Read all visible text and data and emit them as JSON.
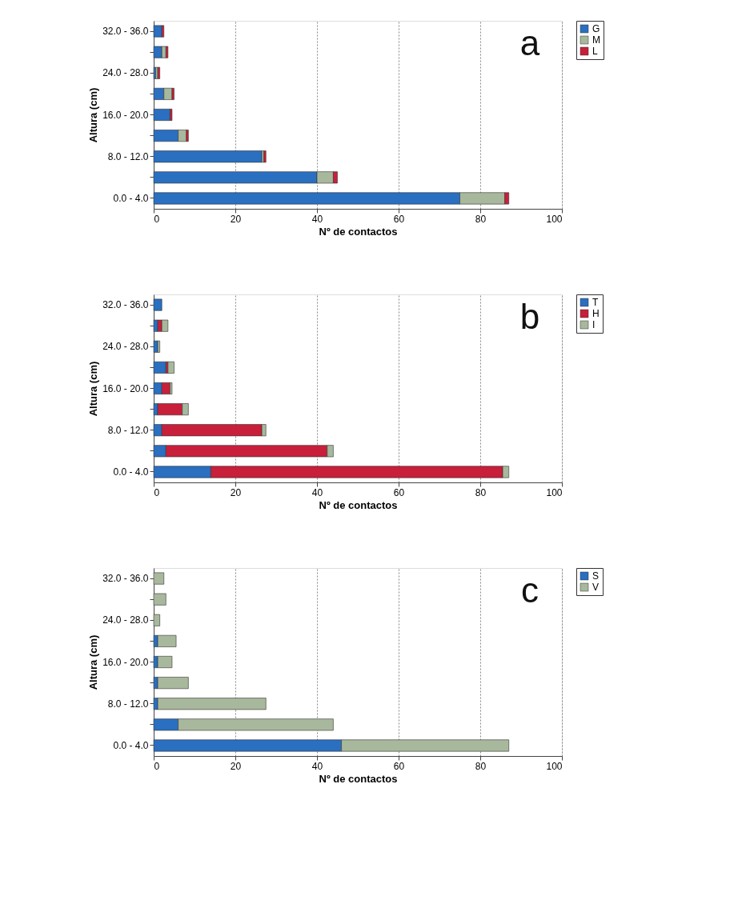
{
  "chart_data": [
    {
      "type": "bar",
      "orientation": "horizontal",
      "stacked": true,
      "annotations": [
        "a"
      ],
      "xlabel": "Nº de contactos",
      "ylabel": "Altura (cm)",
      "categories": [
        "32.0 - 36.0",
        null,
        "24.0 - 28.0",
        null,
        "16.0 - 20.0",
        null,
        "8.0 - 12.0",
        null,
        "0.0 - 4.0"
      ],
      "series": [
        {
          "name": "G",
          "color": "#2a6fc0",
          "values": [
            2,
            2,
            0.5,
            2.5,
            4,
            6,
            26.5,
            40,
            75
          ]
        },
        {
          "name": "M",
          "color": "#a8b89c",
          "values": [
            0,
            1,
            0.5,
            2,
            0,
            2,
            0.5,
            4,
            11
          ]
        },
        {
          "name": "L",
          "color": "#c81f3a",
          "values": [
            0.5,
            0.5,
            0.5,
            0.5,
            0.5,
            0.5,
            0.5,
            1,
            1
          ]
        }
      ],
      "xlim": [
        0,
        100
      ],
      "xticks": [
        0,
        20,
        40,
        60,
        80,
        100
      ],
      "grid": "x",
      "legend": "top right"
    },
    {
      "type": "bar",
      "orientation": "horizontal",
      "stacked": true,
      "annotations": [
        "b"
      ],
      "xlabel": "Nº de contactos",
      "ylabel": "Altura (cm)",
      "categories": [
        "32.0 - 36.0",
        null,
        "24.0 - 28.0",
        null,
        "16.0 - 20.0",
        null,
        "8.0 - 12.0",
        null,
        "0.0 - 4.0"
      ],
      "series": [
        {
          "name": "T",
          "color": "#2a6fc0",
          "values": [
            2,
            1,
            1,
            3,
            2,
            1,
            2,
            3,
            14
          ]
        },
        {
          "name": "H",
          "color": "#c81f3a",
          "values": [
            0,
            1,
            0,
            0.5,
            2,
            6,
            24.5,
            39.5,
            71.5
          ]
        },
        {
          "name": "I",
          "color": "#a8b89c",
          "values": [
            0,
            1.5,
            0.5,
            1.5,
            0.5,
            1.5,
            1,
            1.5,
            1.5
          ]
        }
      ],
      "xlim": [
        0,
        100
      ],
      "xticks": [
        0,
        20,
        40,
        60,
        80,
        100
      ],
      "grid": "x",
      "legend": "top right"
    },
    {
      "type": "bar",
      "orientation": "horizontal",
      "stacked": true,
      "annotations": [
        "c"
      ],
      "xlabel": "Nº de contactos",
      "ylabel": "Altura (cm)",
      "categories": [
        "32.0 - 36.0",
        null,
        "24.0 - 28.0",
        null,
        "16.0 - 20.0",
        null,
        "8.0 - 12.0",
        null,
        "0.0 - 4.0"
      ],
      "series": [
        {
          "name": "S",
          "color": "#2a6fc0",
          "values": [
            0,
            0,
            0,
            1,
            1,
            1,
            1,
            6,
            46
          ]
        },
        {
          "name": "V",
          "color": "#a8b89c",
          "values": [
            2.5,
            3,
            1.5,
            4.5,
            3.5,
            7.5,
            26.5,
            38,
            41
          ]
        }
      ],
      "xlim": [
        0,
        100
      ],
      "xticks": [
        0,
        20,
        40,
        60,
        80,
        100
      ],
      "grid": "x",
      "legend": "top right"
    }
  ]
}
